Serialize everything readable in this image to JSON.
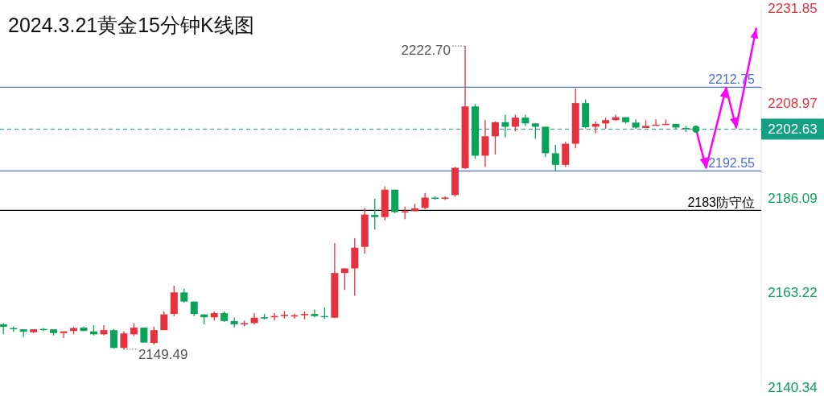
{
  "chart_data": {
    "type": "candlestick",
    "title": "2024.3.21黄金15分钟K线图",
    "categories": [
      null,
      null,
      null,
      null,
      null,
      null,
      null,
      null,
      null,
      null,
      null,
      null,
      null,
      null,
      null,
      null,
      null,
      null,
      null,
      null,
      null,
      null,
      null,
      null,
      null,
      null,
      null,
      null,
      null,
      null,
      null,
      null,
      null,
      null,
      null,
      null,
      null,
      null,
      null,
      null,
      null,
      null,
      null,
      null,
      null,
      null,
      null,
      null,
      null,
      null,
      null,
      null,
      null,
      null,
      null,
      null,
      null,
      null,
      null,
      null,
      null,
      null,
      null,
      null,
      null,
      null,
      null,
      null,
      null,
      null,
      null,
      null,
      null,
      null,
      null,
      null
    ],
    "ohlc": [
      [
        2155.5,
        2155.8,
        2153.1,
        2154.9
      ],
      [
        2154.6,
        2155.0,
        2153.7,
        2154.5
      ],
      [
        2154.3,
        2154.3,
        2152.5,
        2153.7
      ],
      [
        2153.6,
        2154.3,
        2153.4,
        2154.3
      ],
      [
        2154.4,
        2154.6,
        2153.9,
        2154.2
      ],
      [
        2154.3,
        2154.3,
        2152.8,
        2153.4
      ],
      [
        2153.4,
        2153.8,
        2152.2,
        2153.8
      ],
      [
        2153.9,
        2154.9,
        2153.1,
        2154.6
      ],
      [
        2154.7,
        2154.9,
        2153.9,
        2153.9
      ],
      [
        2153.8,
        2155.3,
        2152.8,
        2153.1
      ],
      [
        2153.1,
        2155.3,
        2152.8,
        2154.1
      ],
      [
        2154.1,
        2154.4,
        2149.7,
        2149.8
      ],
      [
        2149.8,
        2153.8,
        2149.49,
        2153.3
      ],
      [
        2153.1,
        2155.8,
        2152.7,
        2154.7
      ],
      [
        2154.7,
        2154.7,
        2151.1,
        2151.1
      ],
      [
        2151.0,
        2154.9,
        2150.6,
        2154.1
      ],
      [
        2154.1,
        2158.6,
        2154.1,
        2157.9
      ],
      [
        2158.0,
        2164.8,
        2157.5,
        2163.2
      ],
      [
        2163.2,
        2164.1,
        2160.7,
        2161.0
      ],
      [
        2161.0,
        2161.0,
        2157.5,
        2158.0
      ],
      [
        2157.9,
        2157.9,
        2155.5,
        2157.2
      ],
      [
        2157.2,
        2158.6,
        2156.4,
        2158.2
      ],
      [
        2158.2,
        2158.6,
        2156.1,
        2156.3
      ],
      [
        2156.3,
        2157.1,
        2154.7,
        2155.5
      ],
      [
        2155.5,
        2156.4,
        2155.0,
        2155.8
      ],
      [
        2155.8,
        2158.2,
        2155.5,
        2157.1
      ],
      [
        2157.2,
        2158.0,
        2156.7,
        2156.9
      ],
      [
        2157.2,
        2158.2,
        2156.4,
        2157.5
      ],
      [
        2157.5,
        2158.7,
        2156.9,
        2157.8
      ],
      [
        2157.5,
        2158.1,
        2156.9,
        2157.7
      ],
      [
        2157.7,
        2158.6,
        2156.7,
        2158.0
      ],
      [
        2158.0,
        2159.1,
        2157.2,
        2157.5
      ],
      [
        2157.5,
        2159.6,
        2156.8,
        2157.3
      ],
      [
        2157.1,
        2175.1,
        2157.0,
        2167.9
      ],
      [
        2167.9,
        2169.0,
        2163.8,
        2169.0
      ],
      [
        2169.0,
        2176.3,
        2162.4,
        2174.0
      ],
      [
        2174.2,
        2183.5,
        2172.6,
        2182.0
      ],
      [
        2181.9,
        2185.8,
        2178.4,
        2181.4
      ],
      [
        2181.4,
        2188.8,
        2180.6,
        2188.0
      ],
      [
        2188.0,
        2188.0,
        2182.3,
        2182.6
      ],
      [
        2182.6,
        2183.9,
        2180.9,
        2182.8
      ],
      [
        2182.8,
        2184.6,
        2182.8,
        2183.5
      ],
      [
        2183.6,
        2187.2,
        2183.3,
        2186.1
      ],
      [
        2186.1,
        2186.4,
        2185.6,
        2185.8
      ],
      [
        2185.8,
        2186.4,
        2185.5,
        2186.1
      ],
      [
        2186.7,
        2193.5,
        2186.3,
        2193.3
      ],
      [
        2193.2,
        2222.7,
        2193.0,
        2208.1
      ],
      [
        2208.1,
        2208.7,
        2195.4,
        2196.2
      ],
      [
        2196.2,
        2204.8,
        2193.5,
        2200.9
      ],
      [
        2200.9,
        2204.5,
        2196.5,
        2204.3
      ],
      [
        2204.3,
        2206.1,
        2200.6,
        2203.2
      ],
      [
        2203.2,
        2206.1,
        2202.1,
        2205.4
      ],
      [
        2205.4,
        2206.1,
        2203.4,
        2204.0
      ],
      [
        2204.0,
        2204.0,
        2200.3,
        2203.2
      ],
      [
        2203.2,
        2203.2,
        2195.9,
        2196.8
      ],
      [
        2196.8,
        2198.8,
        2192.4,
        2194.0
      ],
      [
        2194.0,
        2199.6,
        2193.5,
        2199.1
      ],
      [
        2199.1,
        2212.4,
        2198.0,
        2208.9
      ],
      [
        2208.9,
        2209.8,
        2202.8,
        2203.1
      ],
      [
        2203.2,
        2204.5,
        2201.6,
        2203.9
      ],
      [
        2204.0,
        2205.4,
        2202.7,
        2204.8
      ],
      [
        2204.8,
        2206.1,
        2204.6,
        2205.5
      ],
      [
        2205.5,
        2205.5,
        2204.0,
        2204.3
      ],
      [
        2204.2,
        2205.0,
        2202.7,
        2203.0
      ],
      [
        2202.9,
        2204.8,
        2202.9,
        2203.4
      ],
      [
        2203.5,
        2205.0,
        2203.5,
        2203.7
      ],
      [
        2203.7,
        2204.9,
        2203.7,
        2203.9
      ],
      [
        2203.9,
        2203.9,
        2202.7,
        2203.0
      ],
      [
        2202.9,
        2203.4,
        2201.9,
        2202.8
      ],
      null,
      null,
      null,
      null,
      null,
      null,
      null
    ],
    "colors": [
      "#0aa35a",
      "#0aa35a",
      "#0aa35a",
      "#e5323e",
      "#0aa35a",
      "#0aa35a",
      "#e5323e",
      "#e5323e",
      "#0aa35a",
      "#0aa35a",
      "#e5323e",
      "#0aa35a",
      "#e5323e",
      "#e5323e",
      "#0aa35a",
      "#e5323e",
      "#e5323e",
      "#e5323e",
      "#0aa35a",
      "#0aa35a",
      "#0aa35a",
      "#e5323e",
      "#0aa35a",
      "#0aa35a",
      "#e5323e",
      "#e5323e",
      "#0aa35a",
      "#e5323e",
      "#e5323e",
      "#e5323e",
      "#e5323e",
      "#0aa35a",
      "#0aa35a",
      "#e5323e",
      "#e5323e",
      "#e5323e",
      "#e5323e",
      "#0aa35a",
      "#e5323e",
      "#0aa35a",
      "#e5323e",
      "#e5323e",
      "#e5323e",
      "#0aa35a",
      "#e5323e",
      "#e5323e",
      "#e5323e",
      "#0aa35a",
      "#e5323e",
      "#e5323e",
      "#0aa35a",
      "#e5323e",
      "#0aa35a",
      "#0aa35a",
      "#0aa35a",
      "#0aa35a",
      "#e5323e",
      "#e5323e",
      "#0aa35a",
      "#e5323e",
      "#e5323e",
      "#e5323e",
      "#0aa35a",
      "#0aa35a",
      "#e5323e",
      "#e5323e",
      "#e5323e",
      "#0aa35a",
      "#0aa35a",
      null,
      null,
      null,
      null,
      null,
      null,
      null
    ],
    "series": [
      {
        "type": "line",
        "color": "#ff00ff",
        "values": [
          null,
          null,
          null,
          null,
          null,
          null,
          null,
          null,
          null,
          null,
          null,
          null,
          null,
          null,
          null,
          null,
          null,
          null,
          null,
          null,
          null,
          null,
          null,
          null,
          null,
          null,
          null,
          null,
          null,
          null,
          null,
          null,
          null,
          null,
          null,
          null,
          null,
          null,
          null,
          null,
          null,
          null,
          null,
          null,
          null,
          null,
          null,
          null,
          null,
          null,
          null,
          null,
          null,
          null,
          null,
          null,
          null,
          null,
          null,
          null,
          null,
          null,
          null,
          null,
          null,
          null,
          null,
          null,
          null,
          2202.6,
          2193.3,
          null,
          2212.6,
          2203.0,
          null,
          2226.9
        ]
      }
    ],
    "ylim": [
      2140.34,
      2231.85
    ],
    "yticks": [
      2231.85,
      2208.97,
      2186.09,
      2163.22,
      2140.34
    ],
    "tick_labels": "y",
    "ref_lines": [
      {
        "axis": "y",
        "value": 2212.75,
        "label": "2212.75",
        "color": "#4a6fd8",
        "line_style": "solid"
      },
      {
        "axis": "y",
        "value": 2192.55,
        "label": "2192.55",
        "color": "#4a6fd8",
        "line_style": "solid"
      },
      {
        "axis": "y",
        "value": 2202.63,
        "label": "2202.63",
        "color": "#14a085",
        "line_style": "dashed"
      },
      {
        "axis": "y",
        "value": 2183,
        "label": "2183防守位",
        "color": "#000000",
        "line_style": "solid"
      }
    ],
    "annotations": [
      "2222.70",
      "2149.49"
    ]
  }
}
